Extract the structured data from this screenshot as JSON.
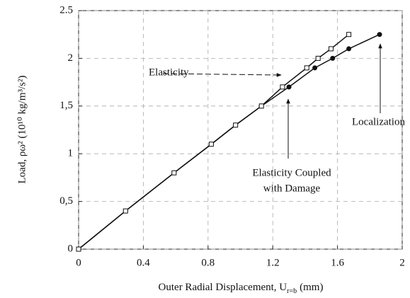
{
  "chart_data": {
    "type": "line",
    "x_label": {
      "text": "Outer Radial Displacement, U",
      "subscript": "r=b",
      "unit": "(mm)"
    },
    "y_label": "Load, ρω² (10¹⁰ kg/m³/s²)",
    "xlim": [
      0,
      2
    ],
    "xticks": [
      0,
      0.4,
      0.8,
      1.2,
      1.6,
      2
    ],
    "ylim": [
      0,
      2.5
    ],
    "yticks": [
      0,
      {
        "value": 0.5,
        "label": "0,5"
      },
      1,
      {
        "value": 1.5,
        "label": "1,5"
      },
      2,
      2.5
    ],
    "grid": true,
    "series": [
      {
        "marker": "circle",
        "color": "#111111",
        "x": [
          0,
          0.29,
          0.59,
          0.82,
          0.97,
          1.13,
          1.3,
          1.46,
          1.57,
          1.67,
          1.86
        ],
        "values": [
          0,
          0.4,
          0.8,
          1.1,
          1.3,
          1.5,
          1.7,
          1.9,
          2.0,
          2.1,
          2.25
        ]
      },
      {
        "marker": "square",
        "color": "#111111",
        "x": [
          0,
          0.29,
          0.59,
          0.82,
          0.97,
          1.13,
          1.26,
          1.41,
          1.48,
          1.56,
          1.67
        ],
        "values": [
          0,
          0.4,
          0.8,
          1.1,
          1.3,
          1.5,
          1.7,
          1.9,
          2.0,
          2.1,
          2.25
        ]
      }
    ],
    "annotations": [
      {
        "text": "Elasticity"
      },
      {
        "text": "Elasticity Coupled",
        "text2": "with Damage"
      },
      {
        "text": "Localization"
      }
    ]
  }
}
